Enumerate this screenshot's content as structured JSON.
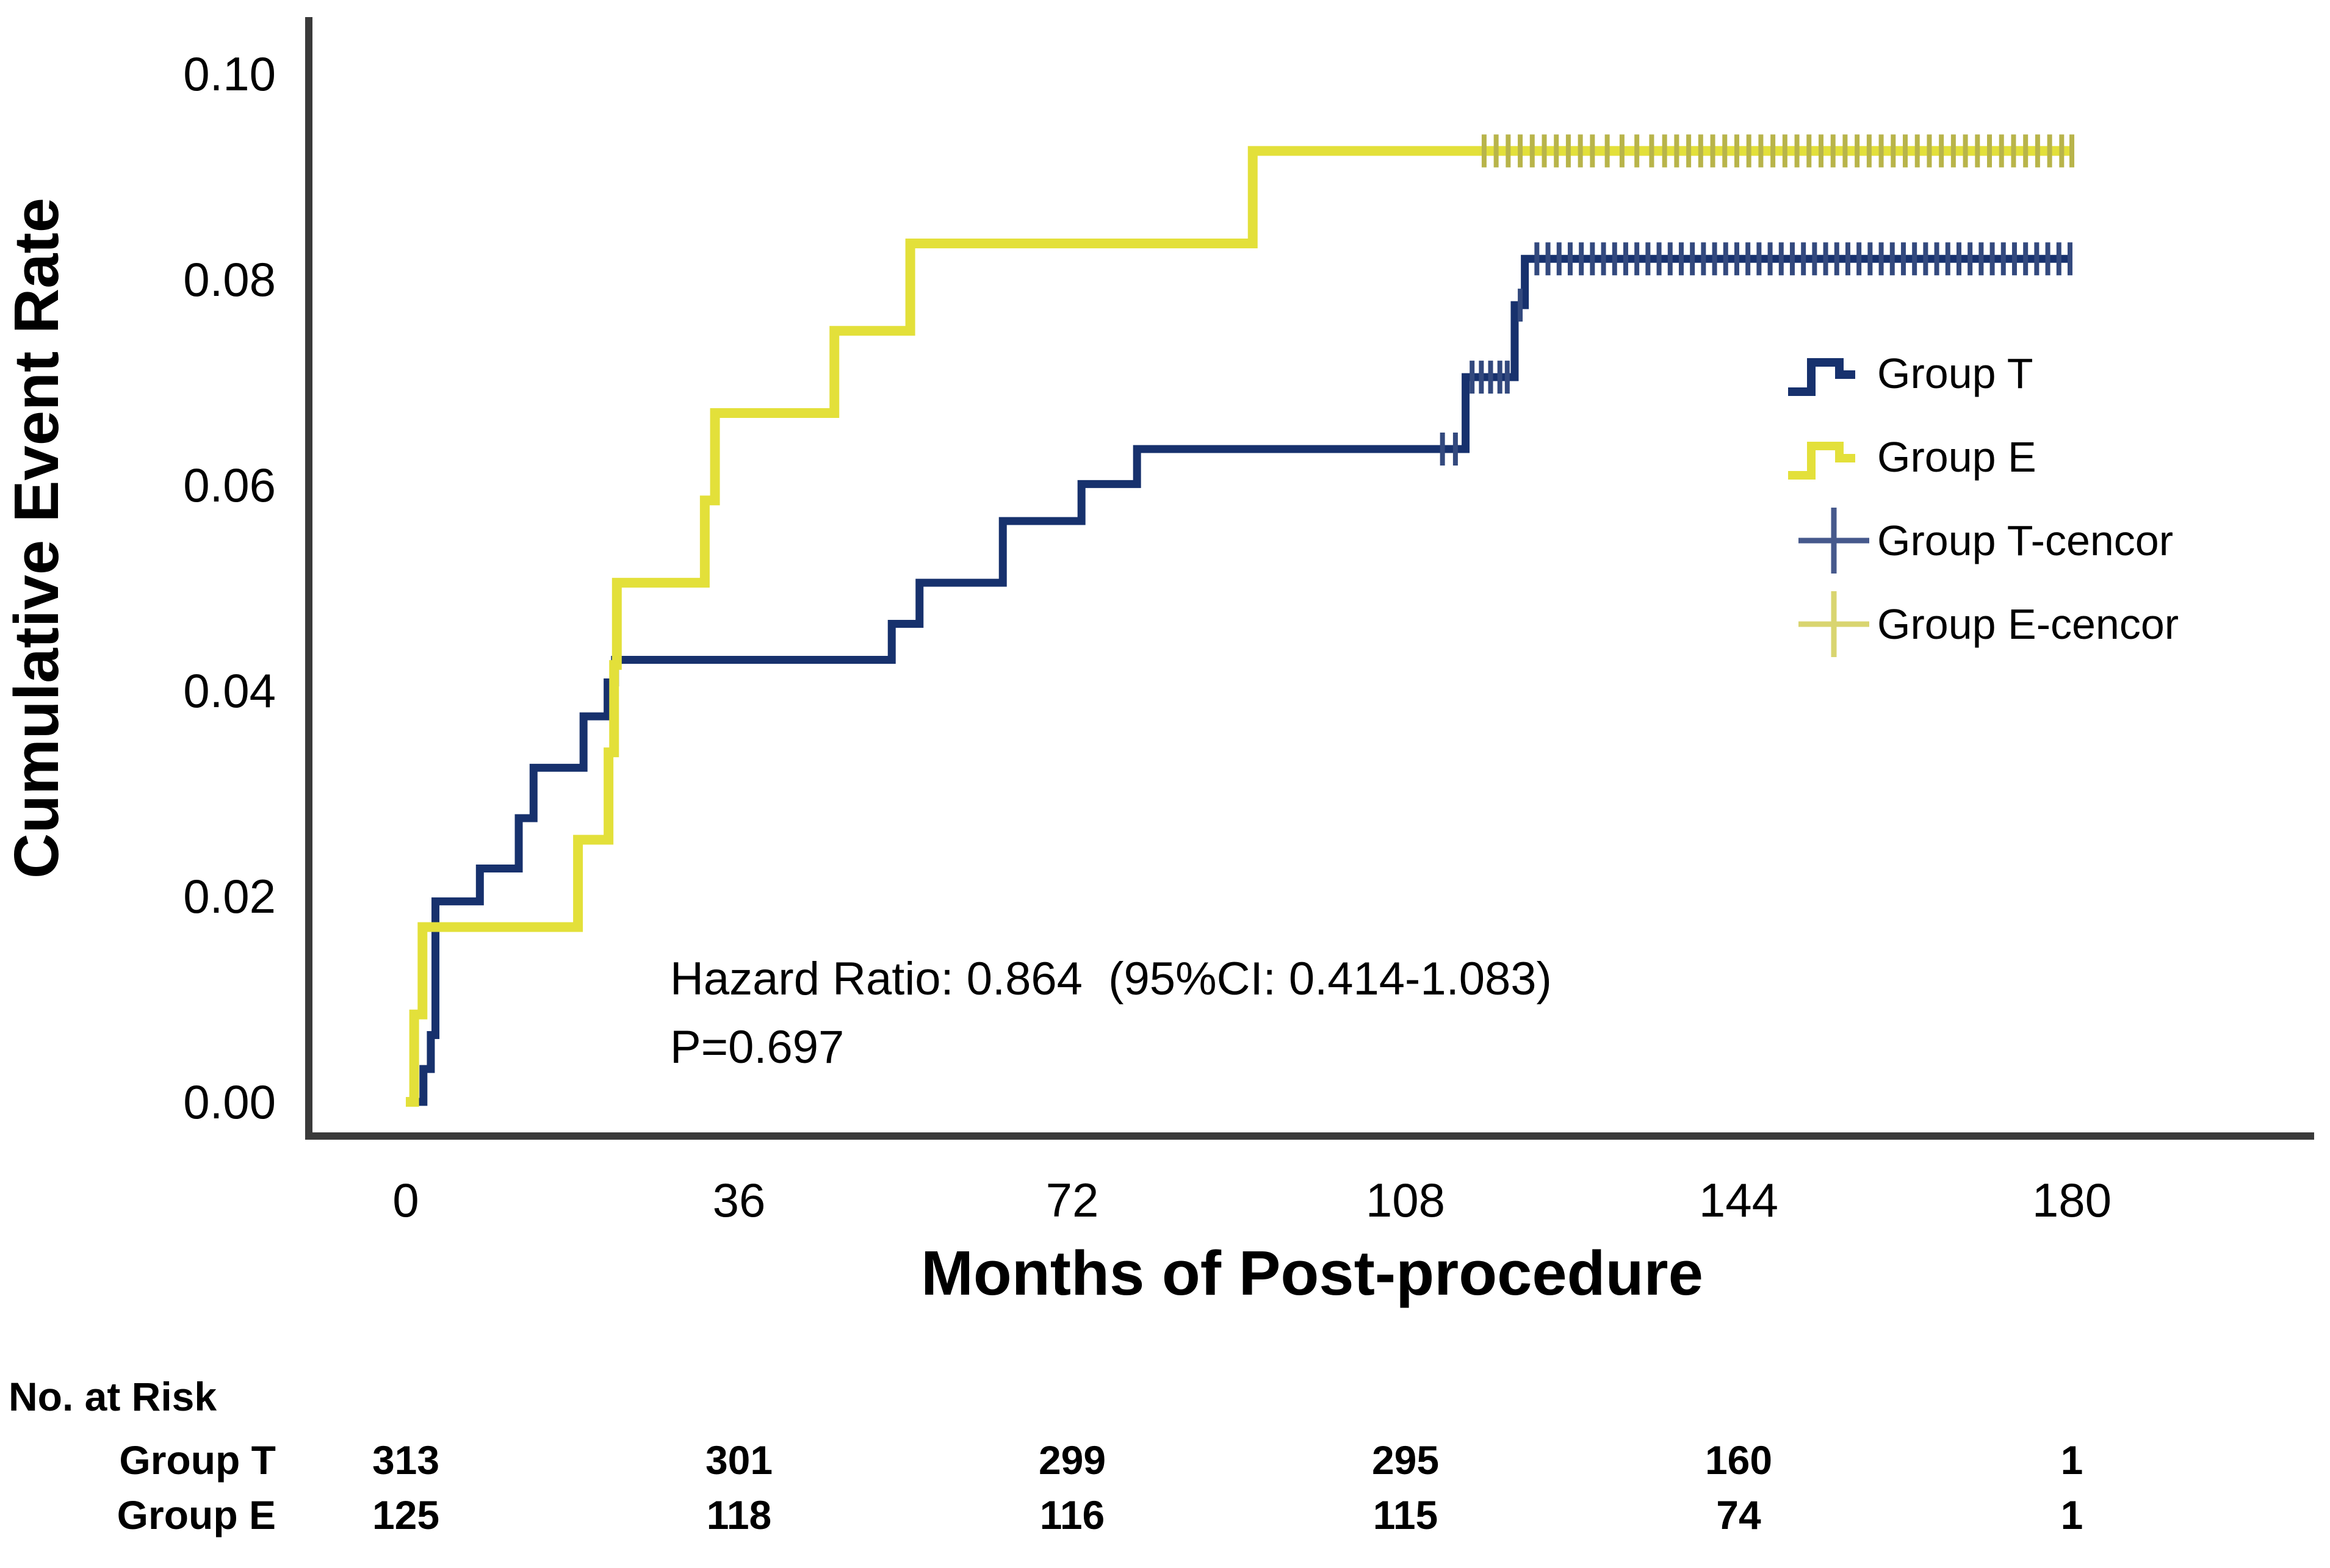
{
  "chart_data": {
    "type": "line",
    "subtype": "kaplan-meier-cumulative-event-step",
    "title": "",
    "xlabel": "Months of Post-procedure",
    "ylabel": "Cumulative Event Rate",
    "xlim": [
      0,
      180
    ],
    "ylim": [
      0,
      0.1
    ],
    "grid": false,
    "legend_position": "right-inside",
    "xticks": [
      0,
      36,
      72,
      108,
      144,
      180
    ],
    "xticklabels": [
      "0",
      "36",
      "72",
      "108",
      "144",
      "180"
    ],
    "yticks": [
      0,
      0.02,
      0.04,
      0.06,
      0.08,
      0.1
    ],
    "yticklabels": [
      "0.00",
      "0.02",
      "0.04",
      "0.06",
      "0.08",
      "0.10"
    ],
    "annotation": {
      "line1": "Hazard Ratio: 0.864  (95%CI: 0.414-1.083)",
      "line2": "P=0.697"
    },
    "legend": {
      "items": [
        {
          "label": "Group T",
          "glyph": "step",
          "color": "#17316d"
        },
        {
          "label": "Group E",
          "glyph": "step",
          "color": "#e3e03a"
        },
        {
          "label": "Group T-cencor",
          "glyph": "plus",
          "color": "#46598c"
        },
        {
          "label": "Group E-cencor",
          "glyph": "plus",
          "color": "#d9d570"
        }
      ]
    },
    "series": [
      {
        "name": "Group T",
        "color": "#17316d",
        "line_width": 13,
        "end_month": 180,
        "censor_color": "#33497e",
        "points": [
          [
            0,
            0
          ],
          [
            1.9,
            0.0032
          ],
          [
            2.7,
            0.0065
          ],
          [
            3.2,
            0.0195
          ],
          [
            8,
            0.0227
          ],
          [
            12.2,
            0.0276
          ],
          [
            13.8,
            0.0325
          ],
          [
            19.2,
            0.0375
          ],
          [
            21.8,
            0.0408
          ],
          [
            22.6,
            0.043
          ],
          [
            52.5,
            0.0465
          ],
          [
            55.5,
            0.0505
          ],
          [
            64.5,
            0.0565
          ],
          [
            73,
            0.0601
          ],
          [
            79,
            0.0635
          ],
          [
            114.5,
            0.0705
          ],
          [
            119.8,
            0.0775
          ],
          [
            120.9,
            0.082
          ]
        ],
        "censors": [
          {
            "value": 0.0635,
            "months": [
              112,
              113.4
            ]
          },
          {
            "value": 0.0705,
            "months": [
              115.2,
              116.2,
              117.2,
              118.2,
              119.0
            ]
          },
          {
            "value": 0.0775,
            "months": [
              120.4
            ]
          },
          {
            "value": 0.082,
            "months": [
              122.2,
              123.4,
              124.6,
              125.8,
              127,
              128.2,
              129.4,
              130.6,
              131.8,
              133,
              134.2,
              135.4,
              136.6,
              137.8,
              139,
              140.2,
              141.4,
              142.6,
              143.8,
              145,
              146.2,
              147.4,
              148.6,
              149.8,
              151,
              152.2,
              153.4,
              154.6,
              155.8,
              157,
              158.2,
              159.4,
              160.6,
              161.8,
              163,
              164.2,
              165.4,
              166.6,
              167.8,
              169,
              170.2,
              171.4,
              172.6,
              173.8,
              175,
              176.2,
              177.4,
              178.6,
              179.8
            ]
          }
        ]
      },
      {
        "name": "Group E",
        "color": "#e3e03a",
        "line_width": 16,
        "end_month": 180,
        "censor_color": "#b8b44a",
        "points": [
          [
            0,
            0
          ],
          [
            0.9,
            0.0085
          ],
          [
            1.8,
            0.017
          ],
          [
            18.6,
            0.0255
          ],
          [
            21.9,
            0.034
          ],
          [
            22.5,
            0.0425
          ],
          [
            22.8,
            0.0505
          ],
          [
            32.3,
            0.0585
          ],
          [
            33.4,
            0.067
          ],
          [
            46.3,
            0.075
          ],
          [
            54.5,
            0.0835
          ],
          [
            91.5,
            0.0925
          ]
        ],
        "censors": [
          {
            "value": 0.0925,
            "months": [
              116.5,
              117.8,
              119.1,
              120.4,
              121.7,
              123,
              124.3,
              125.6,
              126.9,
              128.2,
              129.8,
              131.4,
              133,
              134.6,
              136,
              137.3,
              138.6,
              139.9,
              141.2,
              142.5,
              143.8,
              145.1,
              146.4,
              147.7,
              149,
              150.3,
              151.6,
              152.9,
              154.2,
              155.5,
              156.8,
              158.1,
              159.4,
              160.7,
              162,
              163.3,
              164.6,
              165.9,
              167.2,
              168.5,
              169.8,
              171.1,
              172.4,
              173.7,
              175,
              176.3,
              177.6,
              178.9,
              180
            ]
          }
        ]
      }
    ],
    "risk_table": {
      "title": "No. at Risk",
      "rows": [
        {
          "label": "Group T",
          "counts": [
            "313",
            "301",
            "299",
            "295",
            "160",
            "1"
          ]
        },
        {
          "label": "Group E",
          "counts": [
            "125",
            "118",
            "116",
            "115",
            "74",
            "1"
          ]
        }
      ]
    }
  }
}
